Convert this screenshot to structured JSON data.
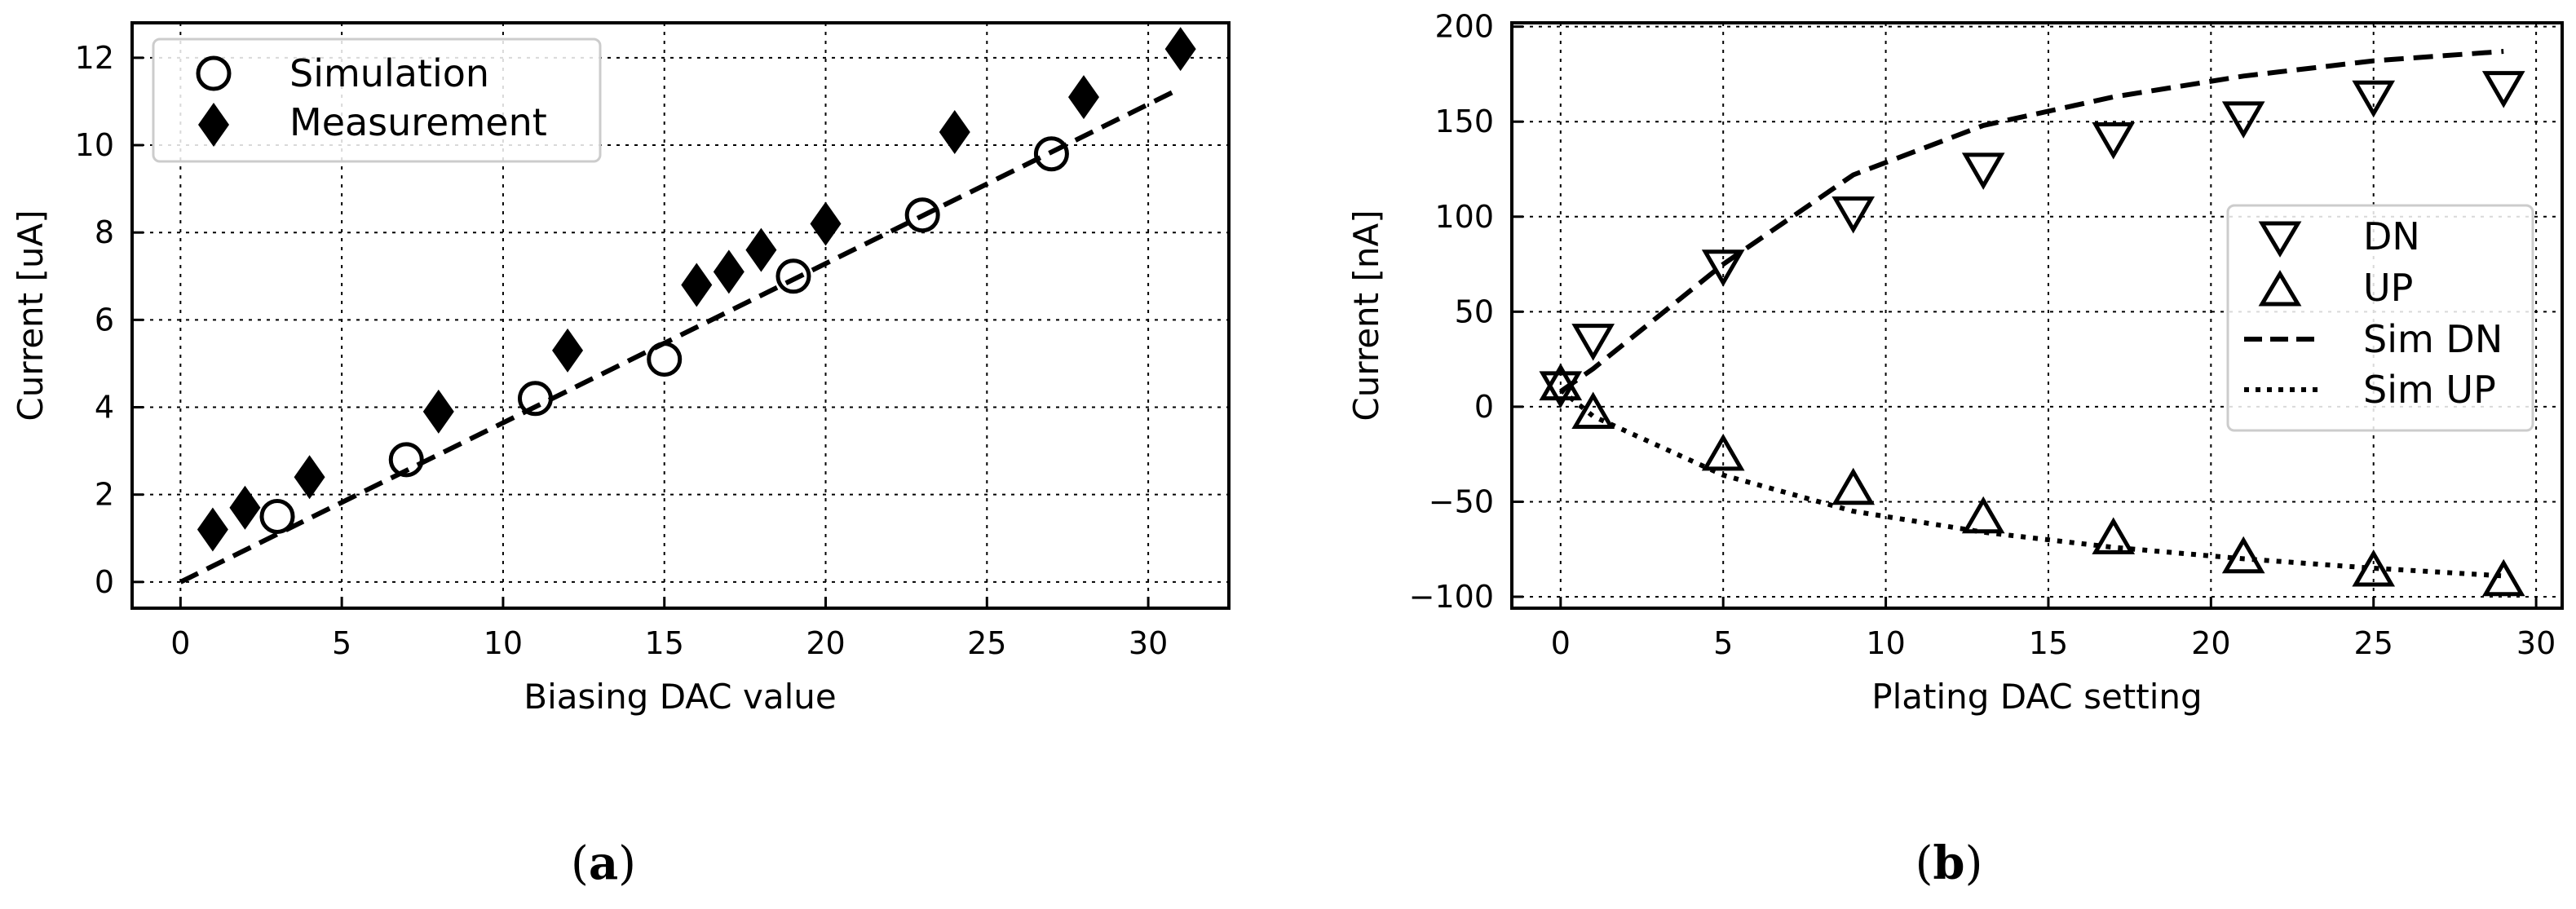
{
  "chart_data": [
    {
      "type": "scatter",
      "panel_label": {
        "open": "(",
        "letter": "a",
        "close": ")"
      },
      "xlabel": "Biasing DAC value",
      "ylabel": "Current [uA]",
      "xlim": [
        -1.5,
        32.5
      ],
      "ylim": [
        -0.6,
        12.8
      ],
      "xticks": [
        0,
        5,
        10,
        15,
        20,
        25,
        30
      ],
      "yticks": [
        0,
        2,
        4,
        6,
        8,
        10,
        12
      ],
      "grid": true,
      "legend_position": "top-left",
      "series": [
        {
          "name": "Simulation",
          "marker": "circle-open",
          "x": [
            3,
            7,
            11,
            15,
            19,
            23,
            27
          ],
          "y": [
            1.5,
            2.8,
            4.2,
            5.1,
            7.0,
            8.4,
            9.8
          ]
        },
        {
          "name": "Measurement",
          "marker": "diamond-filled",
          "x": [
            1,
            2,
            4,
            8,
            12,
            16,
            17,
            18,
            20,
            24,
            28,
            31
          ],
          "y": [
            1.2,
            1.7,
            2.4,
            3.9,
            5.3,
            6.8,
            7.1,
            7.6,
            8.2,
            10.3,
            11.1,
            12.2
          ]
        },
        {
          "name": "",
          "style": "dashed-line",
          "x": [
            0,
            31
          ],
          "y": [
            0,
            11.3
          ]
        }
      ]
    },
    {
      "type": "scatter",
      "panel_label": {
        "open": "(",
        "letter": "b",
        "close": ")"
      },
      "xlabel": "Plating DAC setting",
      "ylabel": "Current [nA]",
      "xlim": [
        -1.5,
        30.8
      ],
      "ylim": [
        -106,
        202
      ],
      "xticks": [
        0,
        5,
        10,
        15,
        20,
        25,
        30
      ],
      "yticks": [
        -100,
        -50,
        0,
        50,
        100,
        150,
        200
      ],
      "ytick_labels": [
        "−100",
        "−50",
        "0",
        "50",
        "100",
        "150",
        "200"
      ],
      "grid": true,
      "legend_position": "center-right",
      "series": [
        {
          "name": "DN",
          "marker": "triangle-down-open",
          "x": [
            0,
            1,
            5,
            9,
            13,
            17,
            21,
            25,
            29
          ],
          "y": [
            12,
            37,
            76,
            104,
            127,
            143,
            154,
            165,
            170
          ]
        },
        {
          "name": "UP",
          "marker": "triangle-up-open",
          "x": [
            0,
            1,
            5,
            9,
            13,
            17,
            21,
            25,
            29
          ],
          "y": [
            10,
            -5,
            -27,
            -45,
            -60,
            -71,
            -81,
            -88,
            -93
          ]
        },
        {
          "name": "Sim DN",
          "style": "dashed-line",
          "x": [
            0,
            1,
            5,
            9,
            13,
            17,
            21,
            25,
            29
          ],
          "y": [
            8,
            20,
            75,
            122,
            148,
            163,
            174,
            182,
            187
          ]
        },
        {
          "name": "Sim UP",
          "style": "dotted-line",
          "x": [
            0,
            1,
            5,
            9,
            13,
            17,
            21,
            25,
            29
          ],
          "y": [
            9,
            -5,
            -36,
            -55,
            -66,
            -74,
            -80,
            -85,
            -89
          ]
        }
      ]
    }
  ]
}
